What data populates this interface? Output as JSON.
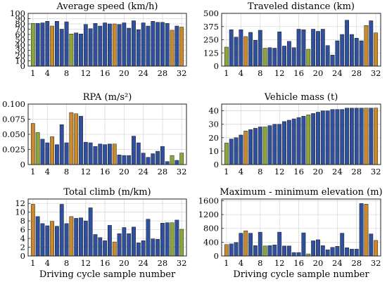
{
  "colors": {
    "blue": "#2f4f9f",
    "green": "#8aa63a",
    "orange": "#c98a2e"
  },
  "chart_data": [
    {
      "id": "avg-speed",
      "type": "bar",
      "title": "Average speed (km/h)",
      "x": [
        1,
        2,
        3,
        4,
        5,
        6,
        7,
        8,
        9,
        10,
        11,
        12,
        13,
        14,
        15,
        16,
        17,
        18,
        19,
        20,
        21,
        22,
        23,
        24,
        25,
        26,
        27,
        28,
        29,
        30,
        31,
        32
      ],
      "values": [
        81,
        81,
        82,
        85,
        76,
        85,
        70,
        84,
        61,
        63,
        61,
        79,
        71,
        81,
        76,
        82,
        80,
        80,
        79,
        82,
        72,
        86,
        69,
        82,
        76,
        85,
        83,
        83,
        81,
        68,
        76,
        74
      ],
      "highlight": {
        "1": "green",
        "5": "orange",
        "9": "green",
        "18": "orange",
        "30": "orange",
        "32": "orange"
      },
      "xticks": [
        1,
        4,
        8,
        12,
        16,
        20,
        24,
        28,
        32
      ],
      "yticks": [
        0,
        10,
        20,
        30,
        40,
        50,
        60,
        70,
        80,
        90,
        100
      ],
      "ylim": [
        0,
        100
      ],
      "xlabel": ""
    },
    {
      "id": "distance",
      "type": "bar",
      "title": "Traveled distance (km)",
      "x": [
        1,
        2,
        3,
        4,
        5,
        6,
        7,
        8,
        9,
        10,
        11,
        12,
        13,
        14,
        15,
        16,
        17,
        18,
        19,
        20,
        21,
        22,
        23,
        24,
        25,
        26,
        27,
        28,
        29,
        30,
        31,
        32
      ],
      "values": [
        180,
        345,
        275,
        345,
        280,
        320,
        245,
        340,
        170,
        175,
        170,
        325,
        190,
        235,
        175,
        350,
        345,
        160,
        350,
        330,
        350,
        195,
        105,
        240,
        300,
        435,
        300,
        265,
        240,
        385,
        430,
        315
      ],
      "highlight": {
        "1": "green",
        "5": "orange",
        "9": "green",
        "18": "green",
        "30": "orange",
        "32": "orange"
      },
      "xticks": [
        1,
        4,
        8,
        12,
        16,
        20,
        24,
        28,
        32
      ],
      "yticks": [
        0,
        125,
        250,
        375,
        500
      ],
      "ylim": [
        0,
        500
      ],
      "xlabel": ""
    },
    {
      "id": "rpa",
      "type": "bar",
      "title": "RPA (m/s²)",
      "x": [
        1,
        2,
        3,
        4,
        5,
        6,
        7,
        8,
        9,
        10,
        11,
        12,
        13,
        14,
        15,
        16,
        17,
        18,
        19,
        20,
        21,
        22,
        23,
        24,
        25,
        26,
        27,
        28,
        29,
        30,
        31,
        32
      ],
      "values": [
        0.068,
        0.053,
        0.042,
        0.036,
        0.046,
        0.033,
        0.066,
        0.036,
        0.086,
        0.084,
        0.08,
        0.037,
        0.036,
        0.03,
        0.034,
        0.033,
        0.034,
        0.034,
        0.016,
        0.015,
        0.015,
        0.047,
        0.036,
        0.019,
        0.012,
        0.018,
        0.022,
        0.03,
        0.005,
        0.015,
        0.007,
        0.019
      ],
      "highlight": {
        "1": "orange",
        "2": "green",
        "5": "orange",
        "9": "orange",
        "10": "orange",
        "18": "orange",
        "30": "green",
        "32": "green"
      },
      "xticks": [
        1,
        4,
        8,
        12,
        16,
        20,
        24,
        28,
        32
      ],
      "yticks": [
        0,
        0.025,
        0.05,
        0.075,
        0.1
      ],
      "ytick_labels": [
        "0",
        "0.025",
        "0.050",
        "0.075",
        "0.100"
      ],
      "ylim": [
        0,
        0.1
      ],
      "xlabel": ""
    },
    {
      "id": "mass",
      "type": "bar",
      "title": "Vehicle mass (t)",
      "x": [
        1,
        2,
        3,
        4,
        5,
        6,
        7,
        8,
        9,
        10,
        11,
        12,
        13,
        14,
        15,
        16,
        17,
        18,
        19,
        20,
        21,
        22,
        23,
        24,
        25,
        26,
        27,
        28,
        29,
        30,
        31,
        32
      ],
      "values": [
        16,
        19,
        20,
        22,
        25,
        26,
        27,
        28,
        28,
        29,
        30,
        30,
        32,
        33,
        34,
        35,
        36,
        37,
        38,
        39,
        40,
        40,
        41,
        41,
        41,
        42,
        42,
        42,
        42,
        42,
        42,
        42
      ],
      "highlight": {
        "1": "green",
        "5": "orange",
        "9": "green",
        "18": "green",
        "30": "orange",
        "32": "orange"
      },
      "xticks": [
        1,
        4,
        8,
        12,
        16,
        20,
        24,
        28,
        32
      ],
      "yticks": [
        0,
        10,
        20,
        30,
        40
      ],
      "ylim": [
        0,
        45
      ],
      "xlabel": ""
    },
    {
      "id": "climb",
      "type": "bar",
      "title": "Total climb (m/km)",
      "x": [
        1,
        2,
        3,
        4,
        5,
        6,
        7,
        8,
        9,
        10,
        11,
        12,
        13,
        14,
        15,
        16,
        17,
        18,
        19,
        20,
        21,
        22,
        23,
        24,
        25,
        26,
        27,
        28,
        29,
        30,
        31,
        32
      ],
      "values": [
        11.8,
        9.0,
        7.4,
        6.9,
        7.9,
        6.8,
        11.8,
        7.4,
        9.0,
        8.6,
        8.7,
        8.0,
        11.0,
        4.9,
        4.2,
        3.5,
        7.0,
        3.2,
        5.1,
        6.5,
        5.1,
        6.6,
        3.0,
        3.5,
        8.4,
        3.9,
        3.8,
        7.5,
        7.6,
        7.6,
        8.2,
        6.1
      ],
      "highlight": {
        "1": "orange",
        "5": "orange",
        "9": "orange",
        "18": "orange",
        "30": "green",
        "32": "green"
      },
      "xticks": [
        1,
        4,
        8,
        12,
        16,
        20,
        24,
        28,
        32
      ],
      "yticks": [
        0,
        2,
        4,
        6,
        8,
        10,
        12
      ],
      "ylim": [
        0,
        13
      ],
      "xlabel": "Driving cycle sample number"
    },
    {
      "id": "elevation",
      "type": "bar",
      "title": "Maximum - minimum elevation (m)",
      "x": [
        1,
        2,
        3,
        4,
        5,
        6,
        7,
        8,
        9,
        10,
        11,
        12,
        13,
        14,
        15,
        16,
        17,
        18,
        19,
        20,
        21,
        22,
        23,
        24,
        25,
        26,
        27,
        28,
        29,
        30,
        31,
        32
      ],
      "values": [
        330,
        350,
        390,
        660,
        730,
        660,
        300,
        690,
        290,
        300,
        320,
        690,
        290,
        290,
        100,
        100,
        670,
        60,
        440,
        470,
        300,
        180,
        250,
        280,
        660,
        240,
        200,
        200,
        1520,
        1500,
        640,
        450
      ],
      "highlight": {
        "1": "orange",
        "5": "orange",
        "9": "green",
        "18": "green",
        "30": "orange",
        "32": "orange"
      },
      "xticks": [
        1,
        4,
        8,
        12,
        16,
        20,
        24,
        28,
        32
      ],
      "yticks": [
        0,
        400,
        800,
        1200,
        1600
      ],
      "ylim": [
        0,
        1650
      ],
      "xlabel": "Driving cycle sample number"
    }
  ]
}
